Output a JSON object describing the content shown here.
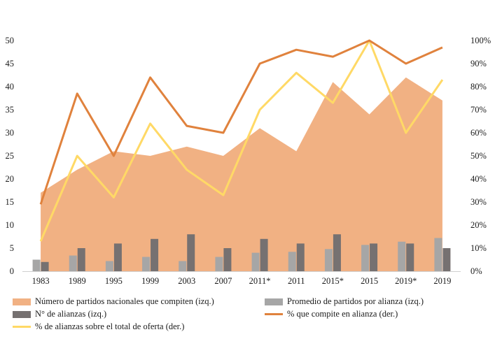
{
  "chart_data": {
    "type": "bar",
    "categories": [
      "1983",
      "1989",
      "1995",
      "1999",
      "2003",
      "2007",
      "2011*",
      "2011",
      "2015*",
      "2015",
      "2019*",
      "2019"
    ],
    "series": [
      {
        "name": "Número de partidos nacionales que compiten (izq.)",
        "type": "area",
        "axis": "left",
        "color": "#F1B183",
        "values": [
          17,
          22,
          26,
          25,
          27,
          25,
          31,
          26,
          41,
          34,
          42,
          37
        ]
      },
      {
        "name": "Promedio de partidos por alianza (izq.)",
        "type": "bar",
        "axis": "left",
        "color": "#A6A6A6",
        "values": [
          2.5,
          3.4,
          2.2,
          3.1,
          2.2,
          3.1,
          4.0,
          4.2,
          4.8,
          5.7,
          6.4,
          7.2
        ]
      },
      {
        "name": "N° de alianzas (izq.)",
        "type": "bar",
        "axis": "left",
        "color": "#767171",
        "values": [
          2,
          5,
          6,
          7,
          8,
          5,
          7,
          6,
          8,
          6,
          6,
          5
        ]
      },
      {
        "name": "% que compite en alianza (der.)",
        "type": "line",
        "axis": "right",
        "color": "#E0823D",
        "values": [
          29,
          77,
          50,
          84,
          63,
          60,
          90,
          96,
          93,
          100,
          90,
          97
        ]
      },
      {
        "name": "% de alianzas sobre el total de oferta (der.)",
        "type": "line",
        "axis": "right",
        "color": "#FFD966",
        "values": [
          13,
          50,
          32,
          64,
          44,
          33,
          70,
          86,
          73,
          100,
          60,
          83
        ]
      }
    ],
    "left_axis": {
      "ticks": [
        "0",
        "5",
        "10",
        "15",
        "20",
        "25",
        "30",
        "35",
        "40",
        "45",
        "50"
      ],
      "ylim": [
        0,
        50
      ]
    },
    "right_axis": {
      "ticks": [
        "0%",
        "10%",
        "20%",
        "30%",
        "40%",
        "50%",
        "60%",
        "70%",
        "80%",
        "90%",
        "100%"
      ],
      "ylim": [
        0,
        100
      ]
    },
    "grid": false,
    "legend_position": "bottom"
  },
  "legend": {
    "items": [
      {
        "label": "Número de partidos nacionales que compiten (izq.)",
        "kind": "box",
        "color": "#F1B183"
      },
      {
        "label": "Promedio de partidos por alianza (izq.)",
        "kind": "box",
        "color": "#A6A6A6"
      },
      {
        "label": "N° de alianzas (izq.)",
        "kind": "box",
        "color": "#767171"
      },
      {
        "label": "% que compite en alianza (der.)",
        "kind": "line",
        "color": "#E0823D"
      },
      {
        "label": "% de alianzas sobre el total de oferta (der.)",
        "kind": "line",
        "color": "#FFD966"
      }
    ]
  }
}
